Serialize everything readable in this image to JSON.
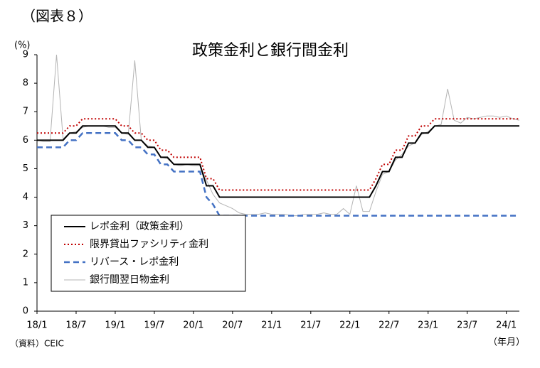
{
  "chart_data": {
    "type": "line",
    "figure_label": "（図表８）",
    "title": "政策金利と銀行間金利",
    "y_label": "(%)",
    "x_label": "（年月）",
    "source": "（資料）CEIC",
    "x": [
      0,
      1,
      2,
      3,
      4,
      5,
      6,
      7,
      8,
      9,
      10,
      11,
      12,
      13,
      14,
      15,
      16,
      17,
      18,
      19,
      20,
      21,
      22,
      23,
      24,
      25,
      26,
      27,
      28,
      29,
      30,
      31,
      32,
      33,
      34,
      35,
      36,
      37,
      38,
      39,
      40,
      41,
      42,
      43,
      44,
      45,
      46,
      47,
      48,
      49,
      50,
      51,
      52,
      53,
      54,
      55,
      56,
      57,
      58,
      59,
      60,
      61,
      62,
      63,
      64,
      65,
      66,
      67,
      68,
      69,
      70,
      71,
      72,
      73,
      74
    ],
    "xlim": [
      0,
      74
    ],
    "xticks": [
      {
        "value": 0,
        "label": "18/1"
      },
      {
        "value": 6,
        "label": "18/7"
      },
      {
        "value": 12,
        "label": "19/1"
      },
      {
        "value": 18,
        "label": "19/7"
      },
      {
        "value": 24,
        "label": "20/1"
      },
      {
        "value": 30,
        "label": "20/7"
      },
      {
        "value": 36,
        "label": "21/1"
      },
      {
        "value": 42,
        "label": "21/7"
      },
      {
        "value": 48,
        "label": "22/1"
      },
      {
        "value": 54,
        "label": "22/7"
      },
      {
        "value": 60,
        "label": "23/1"
      },
      {
        "value": 66,
        "label": "23/7"
      },
      {
        "value": 72,
        "label": "24/1"
      }
    ],
    "ylim": [
      0,
      9
    ],
    "yticks": [
      0,
      1,
      2,
      3,
      4,
      5,
      6,
      7,
      8,
      9
    ],
    "grid": false,
    "legend": "lower-left",
    "series": [
      {
        "name": "レポ金利（政策金利）",
        "color": "#000000",
        "style": "solid",
        "values": [
          6,
          6,
          6,
          6,
          6,
          6.25,
          6.25,
          6.5,
          6.5,
          6.5,
          6.5,
          6.5,
          6.5,
          6.25,
          6.25,
          6,
          6,
          5.75,
          5.75,
          5.4,
          5.4,
          5.15,
          5.15,
          5.15,
          5.15,
          5.15,
          4.4,
          4.4,
          4,
          4,
          4,
          4,
          4,
          4,
          4,
          4,
          4,
          4,
          4,
          4,
          4,
          4,
          4,
          4,
          4,
          4,
          4,
          4,
          4,
          4,
          4,
          4,
          4.4,
          4.9,
          4.9,
          5.4,
          5.4,
          5.9,
          5.9,
          6.25,
          6.25,
          6.5,
          6.5,
          6.5,
          6.5,
          6.5,
          6.5,
          6.5,
          6.5,
          6.5,
          6.5,
          6.5,
          6.5,
          6.5,
          6.5
        ]
      },
      {
        "name": "限界貸出ファシリティ金利",
        "color": "#c00000",
        "style": "dotted",
        "values": [
          6.25,
          6.25,
          6.25,
          6.25,
          6.25,
          6.5,
          6.5,
          6.75,
          6.75,
          6.75,
          6.75,
          6.75,
          6.75,
          6.5,
          6.5,
          6.25,
          6.25,
          6,
          6,
          5.65,
          5.65,
          5.4,
          5.4,
          5.4,
          5.4,
          5.4,
          4.65,
          4.65,
          4.25,
          4.25,
          4.25,
          4.25,
          4.25,
          4.25,
          4.25,
          4.25,
          4.25,
          4.25,
          4.25,
          4.25,
          4.25,
          4.25,
          4.25,
          4.25,
          4.25,
          4.25,
          4.25,
          4.25,
          4.25,
          4.25,
          4.25,
          4.25,
          4.65,
          5.15,
          5.15,
          5.65,
          5.65,
          6.15,
          6.15,
          6.5,
          6.5,
          6.75,
          6.75,
          6.75,
          6.75,
          6.75,
          6.75,
          6.75,
          6.75,
          6.75,
          6.75,
          6.75,
          6.75,
          6.75,
          6.75
        ]
      },
      {
        "name": "リバース・レポ金利",
        "color": "#4472c4",
        "style": "dashed",
        "values": [
          5.75,
          5.75,
          5.75,
          5.75,
          5.75,
          6,
          6,
          6.25,
          6.25,
          6.25,
          6.25,
          6.25,
          6.25,
          6,
          6,
          5.75,
          5.75,
          5.5,
          5.5,
          5.15,
          5.15,
          4.9,
          4.9,
          4.9,
          4.9,
          4.9,
          4,
          3.75,
          3.35,
          3.35,
          3.35,
          3.35,
          3.35,
          3.35,
          3.35,
          3.35,
          3.35,
          3.35,
          3.35,
          3.35,
          3.35,
          3.35,
          3.35,
          3.35,
          3.35,
          3.35,
          3.35,
          3.35,
          3.35,
          3.35,
          3.35,
          3.35,
          3.35,
          3.35,
          3.35,
          3.35,
          3.35,
          3.35,
          3.35,
          3.35,
          3.35,
          3.35,
          3.35,
          3.35,
          3.35,
          3.35,
          3.35,
          3.35,
          3.35,
          3.35,
          3.35,
          3.35,
          3.35,
          3.35,
          3.35
        ]
      },
      {
        "name": "銀行間翌日物金利",
        "color": "#b4b4b4",
        "style": "thin",
        "values": [
          6,
          5.95,
          5.95,
          9,
          6.05,
          6.25,
          6.3,
          6.45,
          6.5,
          6.5,
          6.5,
          6.45,
          6.45,
          6.25,
          6.2,
          8.8,
          6,
          5.8,
          5.75,
          5.4,
          5.35,
          5.15,
          5.1,
          5.15,
          5.1,
          5.1,
          4.6,
          4.1,
          3.8,
          3.7,
          3.6,
          3.45,
          3.4,
          3.4,
          3.4,
          3.45,
          3.4,
          3.4,
          3.4,
          3.35,
          3.35,
          3.4,
          3.4,
          3.4,
          3.45,
          3.4,
          3.4,
          3.6,
          3.4,
          4.4,
          3.5,
          3.5,
          4.2,
          4.8,
          4.9,
          5.3,
          5.5,
          5.8,
          5.9,
          6.2,
          6.3,
          6.5,
          6.55,
          7.8,
          6.7,
          6.6,
          6.8,
          6.75,
          6.8,
          6.85,
          6.85,
          6.8,
          6.85,
          6.75,
          6.7
        ]
      }
    ]
  }
}
